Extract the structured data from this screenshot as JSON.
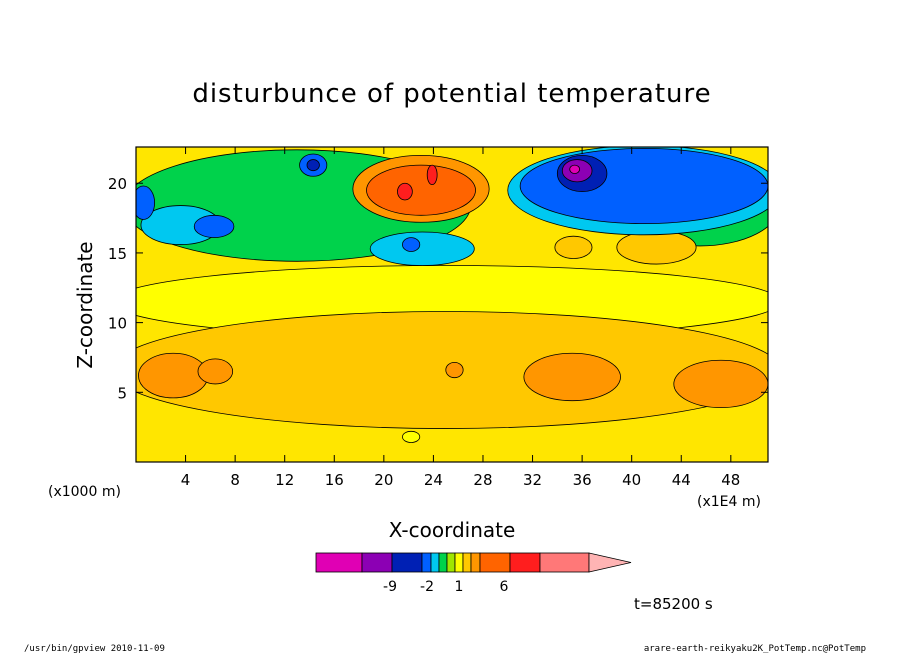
{
  "chart_data": {
    "type": "heatmap",
    "subtype": "filled-contour",
    "title": "disturbunce of potential temperature",
    "xlabel": "X-coordinate",
    "ylabel": "Z-coordinate",
    "x_ticks": [
      4,
      8,
      12,
      16,
      20,
      24,
      28,
      32,
      36,
      40,
      44,
      48
    ],
    "y_ticks": [
      5,
      10,
      15,
      20
    ],
    "xlim": [
      0,
      51
    ],
    "ylim": [
      0,
      22.6
    ],
    "x_unit_left": "(x1000 m)",
    "x_unit_right": "(x1E4 m)",
    "colorbar": {
      "tick_labels": [
        "-9",
        "-2",
        "1",
        "6"
      ],
      "colors": [
        "#e000b4",
        "#8c00b4",
        "#0020b4",
        "#0060ff",
        "#00c8f0",
        "#00d24b",
        "#a0e600",
        "#ffff00",
        "#ffc800",
        "#ff9600",
        "#ff6400",
        "#ff1e1e",
        "#ff7878",
        "#ffb4b4"
      ]
    },
    "time_label": "t=85200 s",
    "regions": [
      {
        "level": 7,
        "x": 25,
        "z": 11.5,
        "rx": 27,
        "rz": 2.6
      },
      {
        "level": 8,
        "x": 25,
        "z": 6.6,
        "rx": 27,
        "rz": 4.2
      },
      {
        "level": 9,
        "x": 3,
        "z": 6.2,
        "rx": 2.8,
        "rz": 1.6
      },
      {
        "level": 9,
        "x": 6.4,
        "z": 6.5,
        "rx": 1.4,
        "rz": 0.9
      },
      {
        "level": 9,
        "x": 25.7,
        "z": 6.6,
        "rx": 0.7,
        "rz": 0.55
      },
      {
        "level": 9,
        "x": 35.2,
        "z": 6.1,
        "rx": 3.9,
        "rz": 1.7
      },
      {
        "level": 9,
        "x": 47.2,
        "z": 5.6,
        "rx": 3.8,
        "rz": 1.7
      },
      {
        "level": 7,
        "x": 22.2,
        "z": 1.8,
        "rx": 0.7,
        "rz": 0.4
      },
      {
        "level": 5,
        "x": 13,
        "z": 18.4,
        "rx": 14,
        "rz": 4.0
      },
      {
        "level": 5,
        "x": 45.5,
        "z": 18.5,
        "rx": 6.5,
        "rz": 3.0
      },
      {
        "level": 4,
        "x": 3.6,
        "z": 17.0,
        "rx": 3.2,
        "rz": 1.4
      },
      {
        "level": 4,
        "x": 23.1,
        "z": 15.3,
        "rx": 4.2,
        "rz": 1.2
      },
      {
        "level": 3,
        "x": 6.3,
        "z": 16.9,
        "rx": 1.6,
        "rz": 0.8
      },
      {
        "level": 3,
        "x": 22.2,
        "z": 15.6,
        "rx": 0.7,
        "rz": 0.5
      },
      {
        "level": 3,
        "x": 0.6,
        "z": 18.6,
        "rx": 0.9,
        "rz": 1.2
      },
      {
        "level": 3,
        "x": 14.3,
        "z": 21.3,
        "rx": 1.1,
        "rz": 0.8
      },
      {
        "level": 2,
        "x": 14.3,
        "z": 21.3,
        "rx": 0.5,
        "rz": 0.4
      },
      {
        "level": 9,
        "x": 23,
        "z": 19.6,
        "rx": 5.5,
        "rz": 2.4
      },
      {
        "level": 10,
        "x": 23,
        "z": 19.5,
        "rx": 4.4,
        "rz": 1.8
      },
      {
        "level": 11,
        "x": 21.7,
        "z": 19.4,
        "rx": 0.6,
        "rz": 0.6
      },
      {
        "level": 11,
        "x": 23.9,
        "z": 20.6,
        "rx": 0.4,
        "rz": 0.7
      },
      {
        "level": 8,
        "x": 35.3,
        "z": 15.4,
        "rx": 1.5,
        "rz": 0.8
      },
      {
        "level": 8,
        "x": 42.0,
        "z": 15.4,
        "rx": 3.2,
        "rz": 1.2
      },
      {
        "level": 4,
        "x": 41,
        "z": 19.5,
        "rx": 11,
        "rz": 3.2
      },
      {
        "level": 3,
        "x": 41,
        "z": 19.8,
        "rx": 10,
        "rz": 2.7
      },
      {
        "level": 2,
        "x": 36,
        "z": 20.7,
        "rx": 2.0,
        "rz": 1.3
      },
      {
        "level": 1,
        "x": 35.6,
        "z": 20.9,
        "rx": 1.2,
        "rz": 0.8
      },
      {
        "level": 0,
        "x": 35.4,
        "z": 21.0,
        "rx": 0.4,
        "rz": 0.3
      }
    ]
  },
  "footer": {
    "left": "/usr/bin/gpview   2010-11-09",
    "right": "arare-earth-reikyaku2K_PotTemp.nc@PotTemp"
  }
}
